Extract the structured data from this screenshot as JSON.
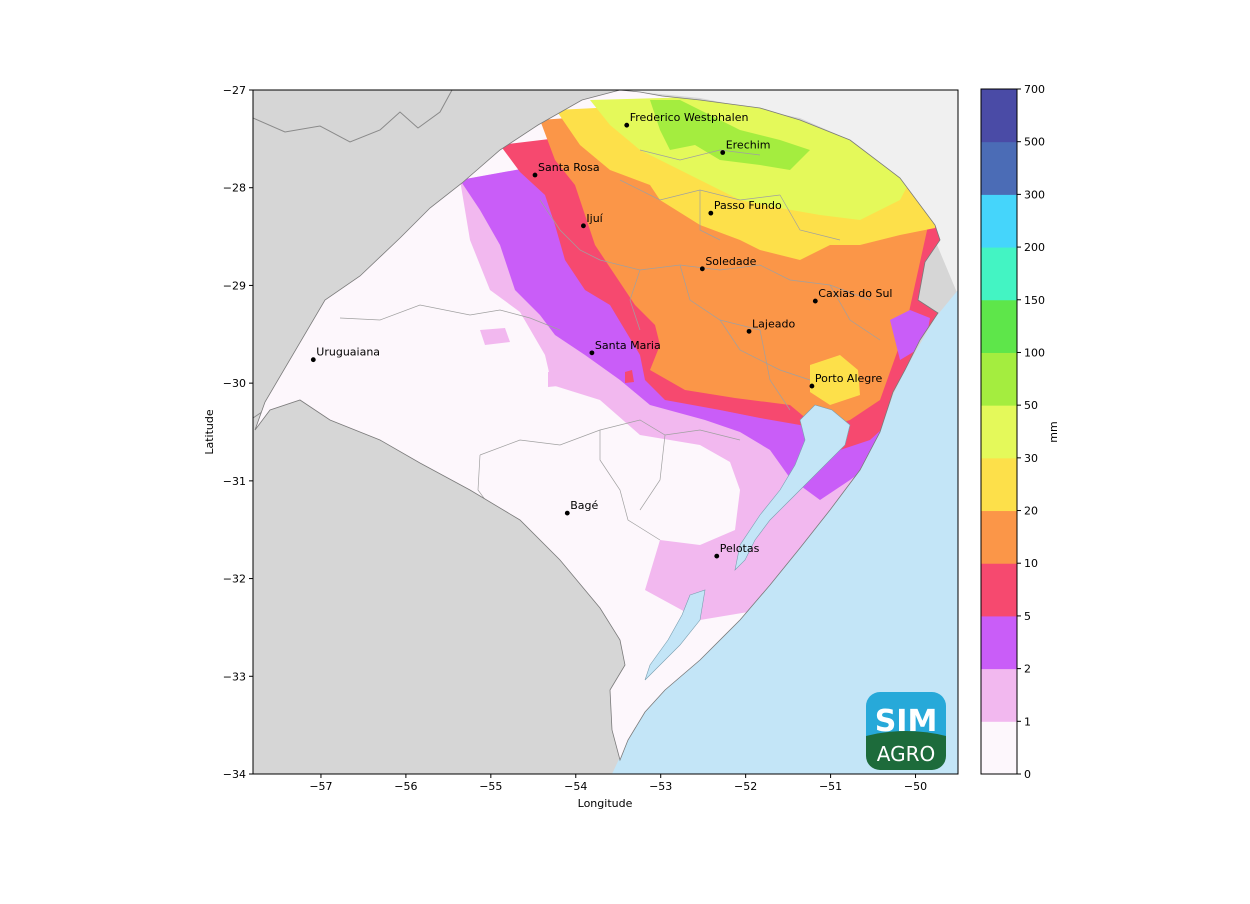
{
  "map": {
    "xlabel": "Longitude",
    "ylabel": "Latitude",
    "lon_range": [
      -57.8,
      -49.5
    ],
    "lat_range": [
      -34,
      -27
    ],
    "lon_ticks": [
      "-57",
      "-56",
      "-55",
      "-54",
      "-53",
      "-52",
      "-51",
      "-50"
    ],
    "lat_ticks": [
      "-27",
      "-28",
      "-29",
      "-30",
      "-31",
      "-32",
      "-33",
      "-34"
    ],
    "colors": {
      "land_outside": "#d6d6d6",
      "land_north": "#f0f0f0",
      "ocean": "#c3e5f7",
      "municipal_border": "#a0a0a0"
    },
    "cities": [
      {
        "name": "Frederico Westphalen",
        "lon": -53.4,
        "lat": -27.36
      },
      {
        "name": "Erechim",
        "lon": -52.27,
        "lat": -27.64
      },
      {
        "name": "Santa Rosa",
        "lon": -54.48,
        "lat": -27.87
      },
      {
        "name": "Passo Fundo",
        "lon": -52.41,
        "lat": -28.26
      },
      {
        "name": "Ijuí",
        "lon": -53.91,
        "lat": -28.39
      },
      {
        "name": "Soledade",
        "lon": -52.51,
        "lat": -28.83
      },
      {
        "name": "Caxias do Sul",
        "lon": -51.18,
        "lat": -29.16
      },
      {
        "name": "Lajeado",
        "lon": -51.96,
        "lat": -29.47
      },
      {
        "name": "Uruguaiana",
        "lon": -57.09,
        "lat": -29.76
      },
      {
        "name": "Santa Maria",
        "lon": -53.81,
        "lat": -29.69
      },
      {
        "name": "Porto Alegre",
        "lon": -51.22,
        "lat": -30.03
      },
      {
        "name": "Bagé",
        "lon": -54.1,
        "lat": -31.33
      },
      {
        "name": "Pelotas",
        "lon": -52.34,
        "lat": -31.77
      }
    ]
  },
  "colorbar": {
    "label": "mm",
    "ticks": [
      "0",
      "1",
      "2",
      "5",
      "10",
      "20",
      "30",
      "50",
      "100",
      "150",
      "200",
      "300",
      "500",
      "700"
    ],
    "colors": [
      "#fdf7fc",
      "#f2b8ef",
      "#c95df8",
      "#f6496f",
      "#fb9648",
      "#fde04a",
      "#e4f95a",
      "#a4ed3f",
      "#5ee64a",
      "#43f4c3",
      "#45d5fb",
      "#4b6cb6",
      "#4a4ba6"
    ]
  },
  "logo": {
    "line1": "SIM",
    "line2": "AGRO",
    "color_top": "#27a9d9",
    "color_bottom": "#1d6b3b"
  }
}
